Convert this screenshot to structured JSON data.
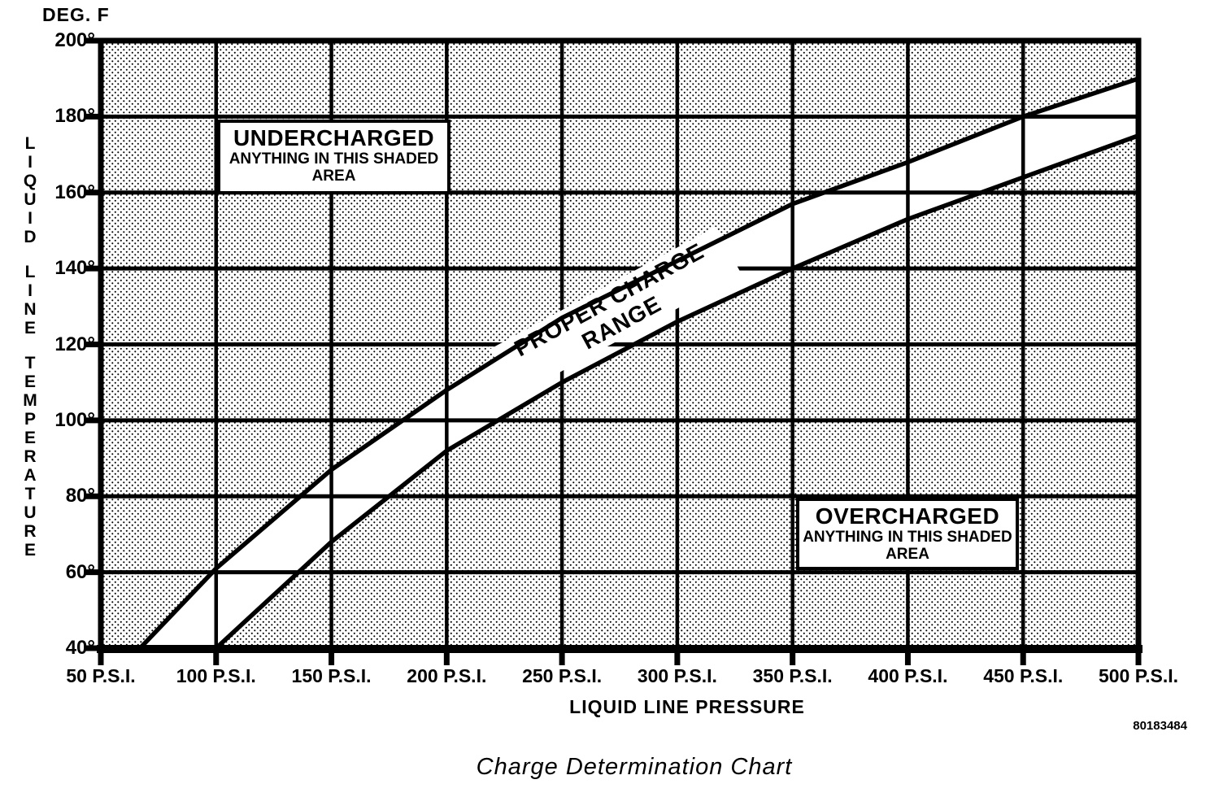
{
  "title": "Charge Determination Chart",
  "part_number": "80183484",
  "y_axis": {
    "unit_label": "DEG. F",
    "title_words": [
      "LIQUID",
      "LINE",
      "TEMPERATURE"
    ],
    "ticks": [
      200,
      180,
      160,
      140,
      120,
      100,
      80,
      60,
      40
    ],
    "labels": [
      "200°",
      "180°",
      "160°",
      "140°",
      "120°",
      "100°",
      "80°",
      "60°",
      "40°"
    ]
  },
  "x_axis": {
    "title": "LIQUID LINE PRESSURE",
    "ticks": [
      50,
      100,
      150,
      200,
      250,
      300,
      350,
      400,
      450,
      500
    ],
    "labels": [
      "50 P.S.I.",
      "100 P.S.I.",
      "150 P.S.I.",
      "200 P.S.I.",
      "250 P.S.I.",
      "300 P.S.I.",
      "350 P.S.I.",
      "400 P.S.I.",
      "450 P.S.I.",
      "500 P.S.I."
    ]
  },
  "annotations": {
    "undercharged": {
      "title": "UNDERCHARGED",
      "line2": "ANYTHING IN THIS SHADED",
      "line3": "AREA"
    },
    "overcharged": {
      "title": "OVERCHARGED",
      "line2": "ANYTHING IN THIS SHADED",
      "line3": "AREA"
    },
    "band_label_line1": "PROPER CHARGE",
    "band_label_line2": "RANGE"
  },
  "chart_data": {
    "type": "area",
    "title": "Charge Determination Chart",
    "xlabel": "LIQUID LINE PRESSURE (P.S.I.)",
    "ylabel": "LIQUID LINE TEMPERATURE (DEG. F)",
    "xlim": [
      50,
      500
    ],
    "ylim": [
      40,
      200
    ],
    "x_tick_step": 50,
    "y_tick_step": 20,
    "grid": true,
    "regions": {
      "above_band": "UNDERCHARGED",
      "band": "PROPER CHARGE RANGE",
      "below_band": "OVERCHARGED"
    },
    "series": [
      {
        "name": "proper_charge_upper_boundary",
        "points": [
          [
            67,
            40
          ],
          [
            100,
            61
          ],
          [
            150,
            87
          ],
          [
            200,
            108
          ],
          [
            250,
            127
          ],
          [
            300,
            142
          ],
          [
            350,
            157
          ],
          [
            400,
            168
          ],
          [
            450,
            180
          ],
          [
            500,
            190
          ]
        ]
      },
      {
        "name": "proper_charge_lower_boundary",
        "points": [
          [
            100,
            40
          ],
          [
            150,
            68
          ],
          [
            200,
            92
          ],
          [
            250,
            110
          ],
          [
            300,
            126
          ],
          [
            350,
            140
          ],
          [
            400,
            153
          ],
          [
            450,
            164
          ],
          [
            500,
            175
          ]
        ]
      }
    ],
    "colors": {
      "ink": "#000000",
      "paper": "#ffffff",
      "shade_dot": "#000000"
    }
  }
}
